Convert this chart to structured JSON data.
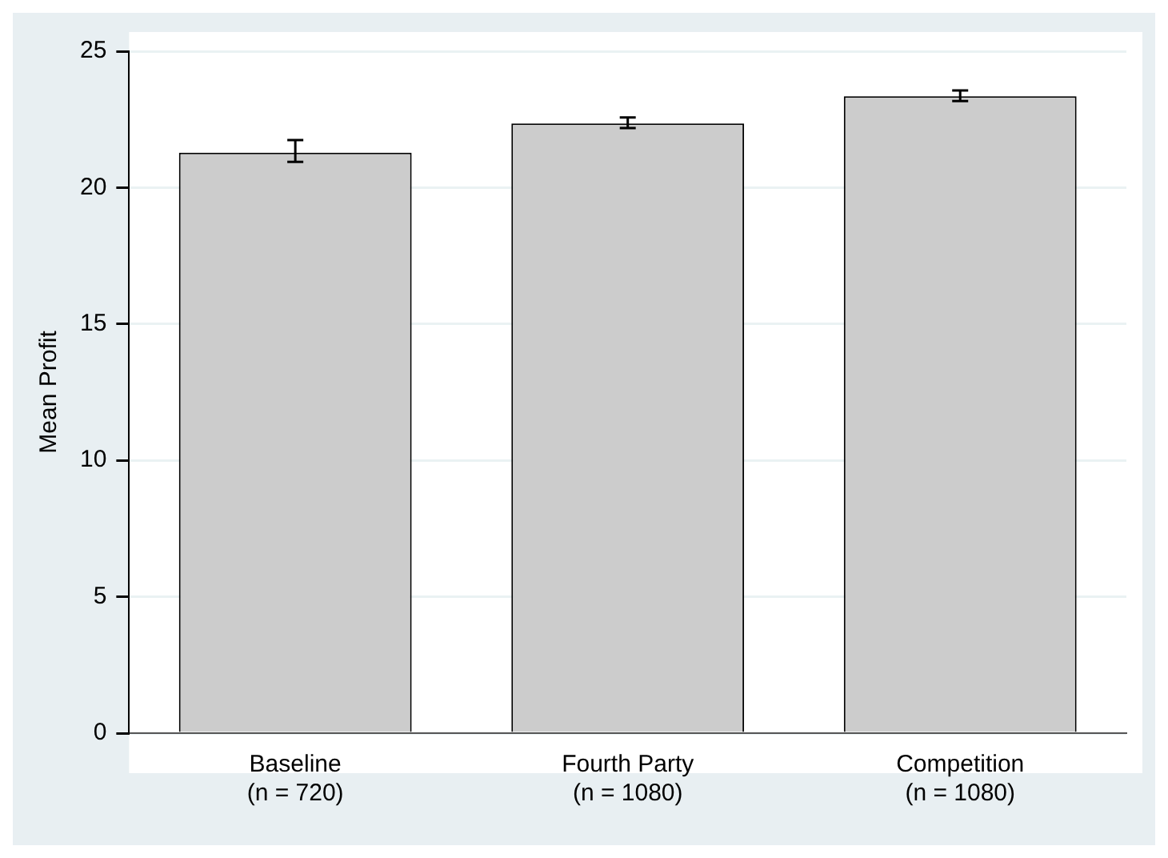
{
  "chart_data": {
    "type": "bar",
    "ylabel": "Mean Profit",
    "categories": [
      "Baseline\n(n = 720)",
      "Fourth Party\n(n = 1080)",
      "Competition\n(n = 1080)"
    ],
    "values": [
      21.28,
      22.35,
      23.35
    ],
    "errors": [
      [
        20.94,
        21.74
      ],
      [
        22.18,
        22.57
      ],
      [
        23.17,
        23.56
      ]
    ],
    "color": "#cccccc",
    "ylim": [
      0,
      25
    ],
    "yticks": [
      0,
      5,
      10,
      15,
      20,
      25
    ],
    "grid": "y"
  }
}
